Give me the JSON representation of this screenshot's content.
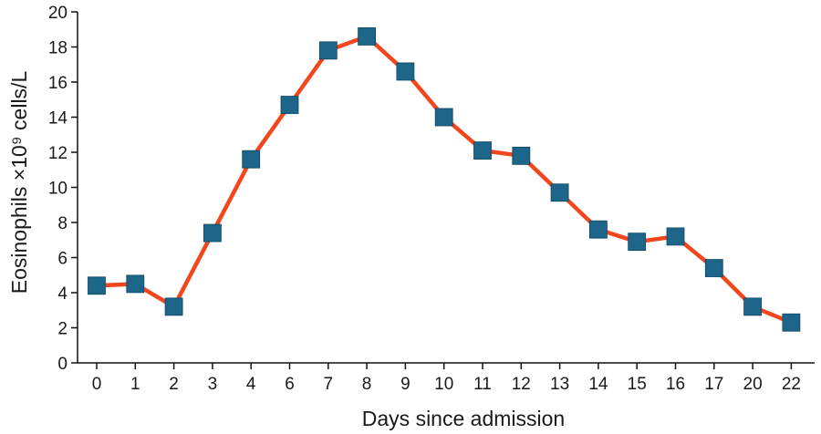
{
  "chart_data": {
    "type": "line",
    "title": "",
    "xlabel": "Days since admission",
    "ylabel": "Eosinophils ×10⁹ cells/L",
    "categories": [
      "0",
      "1",
      "2",
      "3",
      "4",
      "6",
      "7",
      "8",
      "9",
      "10",
      "11",
      "12",
      "13",
      "14",
      "15",
      "16",
      "17",
      "20",
      "22"
    ],
    "series": [
      {
        "values": [
          4.4,
          4.5,
          3.2,
          7.4,
          11.6,
          14.7,
          17.8,
          18.6,
          16.6,
          14.0,
          12.1,
          11.8,
          9.7,
          7.6,
          6.9,
          7.2,
          5.4,
          3.2,
          2.3
        ]
      }
    ],
    "ylim": [
      0,
      20
    ],
    "yticks": [
      0,
      2,
      4,
      6,
      8,
      10,
      12,
      14,
      16,
      18,
      20
    ],
    "grid": false,
    "legend": "none",
    "colors": {
      "line": "#f2461d",
      "marker": "#1d6589",
      "axis": "#111111"
    }
  }
}
